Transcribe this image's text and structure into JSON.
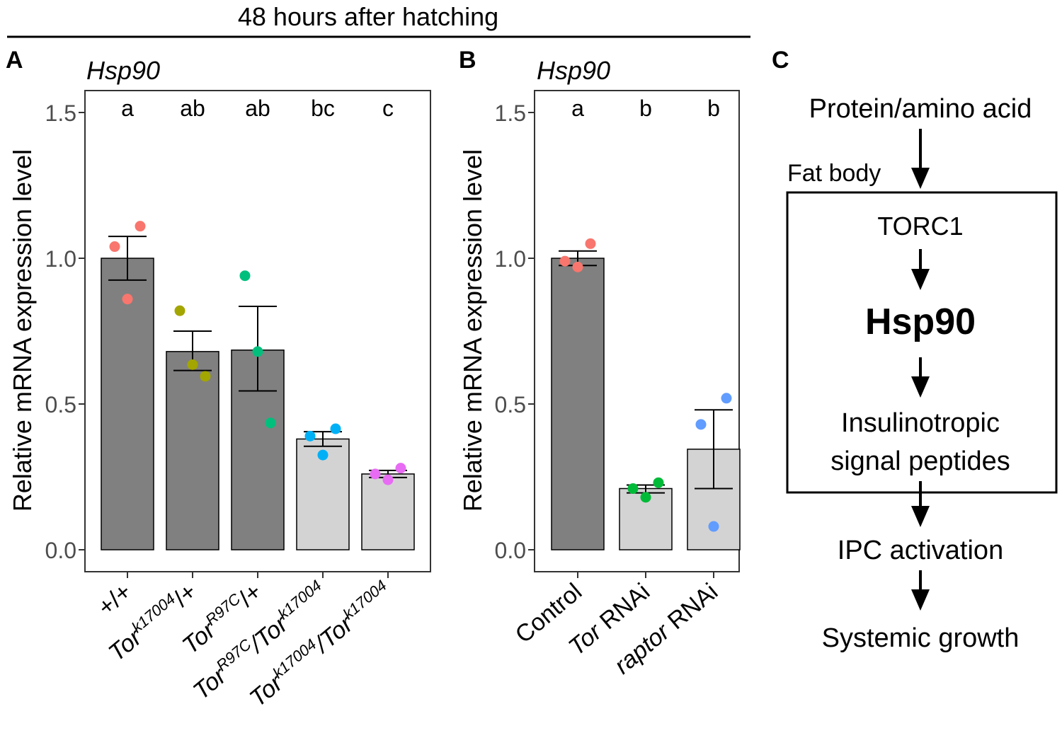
{
  "header": {
    "title": "48 hours after hatching"
  },
  "panels": {
    "a": "A",
    "b": "B",
    "c": "C"
  },
  "chart_data": [
    {
      "type": "bar",
      "panel": "A",
      "title": "Hsp90",
      "ylabel": "Relative mRNA expression level",
      "ylim": [
        0,
        1.6
      ],
      "yticks": [
        "0.0",
        "0.5",
        "1.0",
        "1.5"
      ],
      "categories": [
        {
          "parts": [
            [
              "+/+",
              "n"
            ]
          ]
        },
        {
          "parts": [
            [
              "Tor",
              "n"
            ],
            [
              "k17004",
              "sup"
            ],
            [
              "/+",
              "n"
            ]
          ]
        },
        {
          "parts": [
            [
              "Tor",
              "n"
            ],
            [
              "R97C",
              "sup"
            ],
            [
              "/+",
              "n"
            ]
          ]
        },
        {
          "parts": [
            [
              "Tor",
              "n"
            ],
            [
              "R97C",
              "sup"
            ],
            [
              "/Tor",
              "n"
            ],
            [
              "k17004",
              "sup"
            ]
          ]
        },
        {
          "parts": [
            [
              "Tor",
              "n"
            ],
            [
              "k17004",
              "sup"
            ],
            [
              "/Tor",
              "n"
            ],
            [
              "k17004",
              "sup"
            ]
          ]
        }
      ],
      "values": [
        1.0,
        0.68,
        0.685,
        0.38,
        0.26
      ],
      "error_low": [
        0.925,
        0.615,
        0.545,
        0.355,
        0.248
      ],
      "error_high": [
        1.075,
        0.75,
        0.835,
        0.405,
        0.272
      ],
      "bar_colors": [
        "#808080",
        "#808080",
        "#808080",
        "#d3d3d3",
        "#d3d3d3"
      ],
      "point_colors": [
        "#f8766d",
        "#a3a500",
        "#00bf7d",
        "#00b0f6",
        "#e76bf3"
      ],
      "points": [
        [
          1.04,
          0.86,
          1.11
        ],
        [
          0.82,
          0.635,
          0.595
        ],
        [
          0.94,
          0.68,
          0.435
        ],
        [
          0.39,
          0.325,
          0.415
        ],
        [
          0.26,
          0.24,
          0.28
        ]
      ],
      "significance": [
        "a",
        "ab",
        "ab",
        "bc",
        "c"
      ]
    },
    {
      "type": "bar",
      "panel": "B",
      "title": "Hsp90",
      "ylabel": "Relative mRNA expression level",
      "ylim": [
        0,
        1.6
      ],
      "yticks": [
        "0.0",
        "0.5",
        "1.0",
        "1.5"
      ],
      "categories": [
        {
          "parts": [
            [
              "Control",
              "n"
            ]
          ]
        },
        {
          "parts": [
            [
              "Tor",
              "i"
            ],
            [
              " RNAi",
              "n"
            ]
          ]
        },
        {
          "parts": [
            [
              "raptor",
              "i"
            ],
            [
              " RNAi",
              "n"
            ]
          ]
        }
      ],
      "values": [
        1.0,
        0.21,
        0.345
      ],
      "error_low": [
        0.975,
        0.195,
        0.21
      ],
      "error_high": [
        1.025,
        0.222,
        0.48
      ],
      "bar_colors": [
        "#808080",
        "#d3d3d3",
        "#d3d3d3"
      ],
      "point_colors": [
        "#f8766d",
        "#00ba38",
        "#619cff"
      ],
      "points": [
        [
          0.99,
          0.97,
          1.05
        ],
        [
          0.21,
          0.18,
          0.23
        ],
        [
          0.43,
          0.08,
          0.52
        ]
      ],
      "significance": [
        "a",
        "b",
        "b"
      ]
    }
  ],
  "diagram": {
    "top": "Protein/amino acid",
    "fat_body": "Fat body",
    "torc1": "TORC1",
    "hsp90": "Hsp90",
    "peptides_line1": "Insulinotropic",
    "peptides_line2": "signal peptides",
    "ipc": "IPC activation",
    "growth": "Systemic growth"
  }
}
